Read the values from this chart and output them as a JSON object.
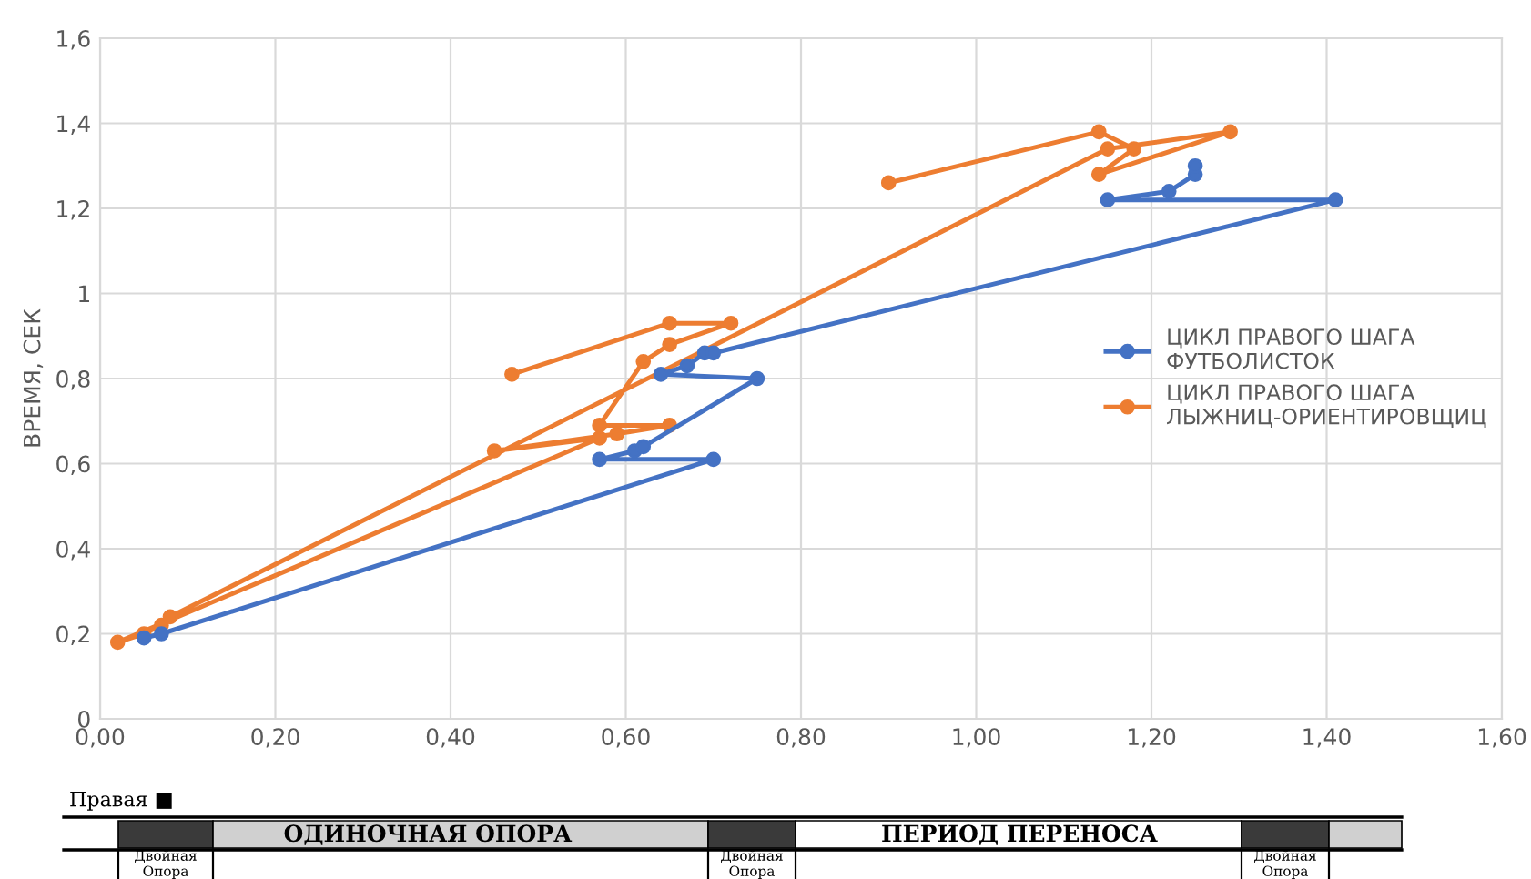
{
  "chart_data": {
    "type": "line",
    "ylabel": "ВРЕМЯ, СЕК",
    "xlim": [
      0,
      1.6
    ],
    "ylim": [
      0,
      1.6
    ],
    "xticks": [
      {
        "value": 0,
        "label": "0,00"
      },
      {
        "value": 0.2,
        "label": "0,20"
      },
      {
        "value": 0.4,
        "label": "0,40"
      },
      {
        "value": 0.6,
        "label": "0,60"
      },
      {
        "value": 0.8,
        "label": "0,80"
      },
      {
        "value": 1.0,
        "label": "1,00"
      },
      {
        "value": 1.2,
        "label": "1,20"
      },
      {
        "value": 1.4,
        "label": "1,40"
      },
      {
        "value": 1.6,
        "label": "1,60"
      }
    ],
    "yticks": [
      0,
      {
        "value": 0.2,
        "label": "0,2"
      },
      {
        "value": 0.4,
        "label": "0,4"
      },
      {
        "value": 0.6,
        "label": "0,6"
      },
      {
        "value": 0.8,
        "label": "0,8"
      },
      1,
      {
        "value": 1.2,
        "label": "1,2"
      },
      {
        "value": 1.4,
        "label": "1,4"
      },
      {
        "value": 1.6,
        "label": "1,6"
      }
    ],
    "grid": true,
    "legend": "center right",
    "marker": "circle",
    "line_style": "solid",
    "series": [
      {
        "name": "ЦИКЛ ПРАВОГО ШАГА ФУТБОЛИСТОК",
        "color": "#4472c4",
        "x": [
          0.05,
          0.07,
          0.7,
          0.57,
          0.61,
          0.62,
          0.75,
          0.64,
          0.67,
          0.69,
          0.7,
          1.41,
          1.15,
          1.22,
          1.25,
          1.25
        ],
        "values": [
          0.19,
          0.2,
          0.61,
          0.61,
          0.63,
          0.64,
          0.8,
          0.81,
          0.83,
          0.86,
          0.86,
          1.22,
          1.22,
          1.24,
          1.28,
          1.3
        ]
      },
      {
        "name": "ЦИКЛ ПРАВОГО ШАГА ЛЫЖНИЦ-ОРИЕНТИРОВЩИЦ",
        "color": "#ed7d31",
        "x": [
          0.47,
          0.65,
          0.72,
          0.65,
          0.62,
          0.57,
          0.65,
          0.59,
          0.45,
          0.57,
          0.02,
          0.05,
          0.07,
          0.08,
          1.15,
          1.29,
          1.14,
          1.18,
          1.14,
          0.9
        ],
        "values": [
          0.81,
          0.93,
          0.93,
          0.88,
          0.84,
          0.69,
          0.69,
          0.67,
          0.63,
          0.66,
          0.18,
          0.2,
          0.22,
          0.24,
          1.34,
          1.38,
          1.28,
          1.34,
          1.38,
          1.26
        ]
      }
    ],
    "annotations": [
      "Правая ■",
      "ОДИНОЧНАЯ ОПОРА",
      "ПЕРИОД ПЕРЕНОСА",
      "Двойная Опора",
      "Двойная Опора",
      "Двойная Опора"
    ]
  }
}
